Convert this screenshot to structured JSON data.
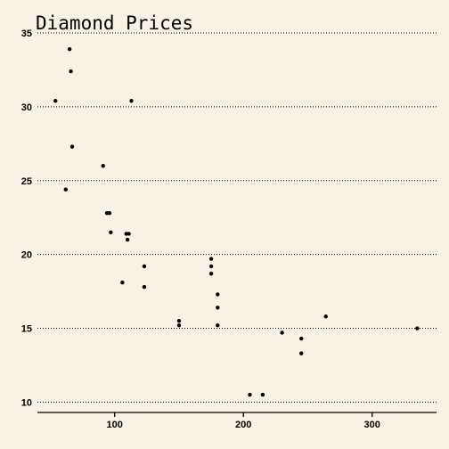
{
  "chart_data": {
    "type": "scatter",
    "title": "Diamond Prices",
    "xlabel": "",
    "ylabel": "",
    "xlim": [
      40,
      350
    ],
    "ylim": [
      9.3,
      35
    ],
    "xticks": [
      100,
      200,
      300
    ],
    "yticks": [
      10,
      15,
      20,
      25,
      30,
      35
    ],
    "grid": "horizontal-dotted",
    "marker_color": "#000000",
    "background_color": "#f8f2e4",
    "points": [
      {
        "x": 54,
        "y": 30.4
      },
      {
        "x": 65,
        "y": 33.9
      },
      {
        "x": 66,
        "y": 32.4
      },
      {
        "x": 67,
        "y": 27.3
      },
      {
        "x": 62,
        "y": 24.4
      },
      {
        "x": 91,
        "y": 26.0
      },
      {
        "x": 113,
        "y": 30.4
      },
      {
        "x": 94,
        "y": 22.8
      },
      {
        "x": 96,
        "y": 22.8
      },
      {
        "x": 97,
        "y": 21.5
      },
      {
        "x": 109,
        "y": 21.4
      },
      {
        "x": 111,
        "y": 21.4
      },
      {
        "x": 110,
        "y": 21.0
      },
      {
        "x": 123,
        "y": 19.2
      },
      {
        "x": 106,
        "y": 18.1
      },
      {
        "x": 123,
        "y": 17.8
      },
      {
        "x": 150,
        "y": 15.5
      },
      {
        "x": 150,
        "y": 15.2
      },
      {
        "x": 175,
        "y": 19.7
      },
      {
        "x": 175,
        "y": 19.2
      },
      {
        "x": 175,
        "y": 18.7
      },
      {
        "x": 180,
        "y": 17.3
      },
      {
        "x": 180,
        "y": 16.4
      },
      {
        "x": 180,
        "y": 15.2
      },
      {
        "x": 230,
        "y": 14.7
      },
      {
        "x": 245,
        "y": 14.3
      },
      {
        "x": 245,
        "y": 13.3
      },
      {
        "x": 264,
        "y": 15.8
      },
      {
        "x": 205,
        "y": 10.5
      },
      {
        "x": 215,
        "y": 10.5
      },
      {
        "x": 335,
        "y": 15.0
      }
    ]
  }
}
